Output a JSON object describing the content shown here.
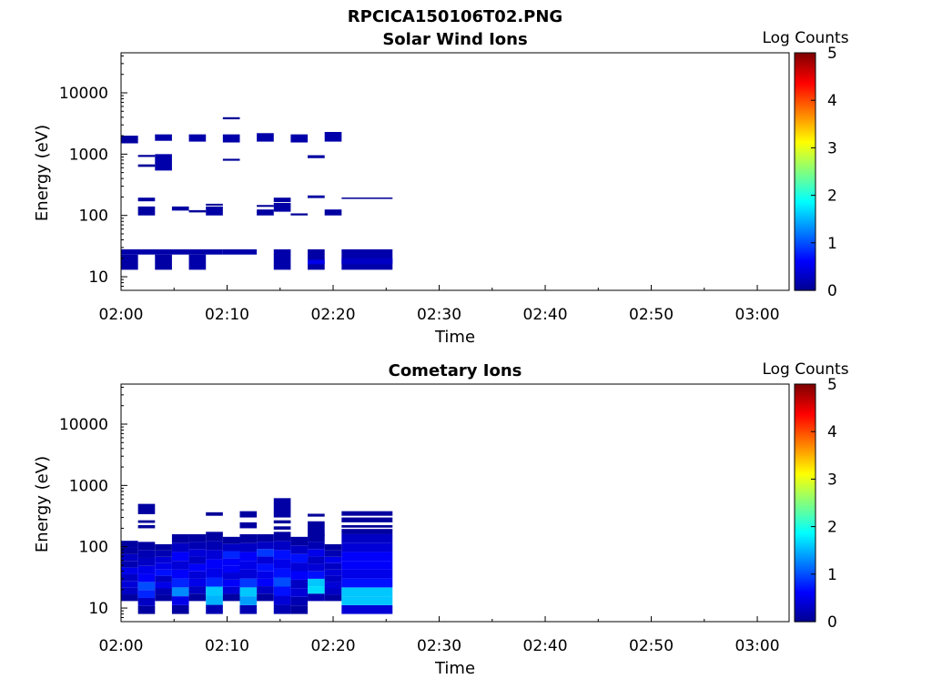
{
  "figure_title": "RPCICA150106T02.PNG",
  "colormap": [
    "#00008f",
    "#0000ff",
    "#0080ff",
    "#00ffff",
    "#80ff80",
    "#ffff00",
    "#ff8000",
    "#ff0000",
    "#800000"
  ],
  "chart_data": [
    {
      "type": "heatmap",
      "title": "Solar Wind Ions",
      "xlabel": "Time",
      "ylabel": "Energy (eV)",
      "colorbar_label": "Log Counts",
      "colorbar_ticks": [
        "0",
        "1",
        "2",
        "3",
        "4",
        "5"
      ],
      "colorbar_range": [
        0,
        5
      ],
      "x_ticks": [
        "02:00",
        "02:10",
        "02:20",
        "02:30",
        "02:40",
        "02:50",
        "03:00"
      ],
      "y_ticks": [
        "10",
        "100",
        "1000",
        "10000"
      ],
      "xlim_minutes": [
        0,
        63
      ],
      "ylim": [
        6,
        45000
      ],
      "y_scale": "log",
      "cells": [
        {
          "t0": 0.0,
          "t1": 1.6,
          "e0": 1500,
          "e1": 2000,
          "v": 0.1
        },
        {
          "t0": 3.2,
          "t1": 4.8,
          "e0": 1650,
          "e1": 2100,
          "v": 0.15
        },
        {
          "t0": 6.4,
          "t1": 8.0,
          "e0": 1600,
          "e1": 2100,
          "v": 0.15
        },
        {
          "t0": 9.6,
          "t1": 11.2,
          "e0": 1550,
          "e1": 2100,
          "v": 0.15
        },
        {
          "t0": 12.8,
          "t1": 14.4,
          "e0": 1600,
          "e1": 2200,
          "v": 0.15
        },
        {
          "t0": 16.0,
          "t1": 17.6,
          "e0": 1550,
          "e1": 2100,
          "v": 0.15
        },
        {
          "t0": 19.2,
          "t1": 20.8,
          "e0": 1600,
          "e1": 2300,
          "v": 0.15
        },
        {
          "t0": 9.6,
          "t1": 11.2,
          "e0": 3700,
          "e1": 4000,
          "v": 0.05
        },
        {
          "t0": 9.6,
          "t1": 11.2,
          "e0": 780,
          "e1": 840,
          "v": 0.05
        },
        {
          "t0": 1.6,
          "t1": 3.2,
          "e0": 900,
          "e1": 970,
          "v": 0.05
        },
        {
          "t0": 1.6,
          "t1": 3.2,
          "e0": 620,
          "e1": 680,
          "v": 0.05
        },
        {
          "t0": 3.2,
          "t1": 4.8,
          "e0": 540,
          "e1": 1000,
          "v": 0.15
        },
        {
          "t0": 17.6,
          "t1": 19.2,
          "e0": 860,
          "e1": 960,
          "v": 0.1
        },
        {
          "t0": 1.6,
          "t1": 3.2,
          "e0": 170,
          "e1": 195,
          "v": 0.1
        },
        {
          "t0": 1.6,
          "t1": 3.2,
          "e0": 100,
          "e1": 140,
          "v": 0.1
        },
        {
          "t0": 4.8,
          "t1": 6.4,
          "e0": 120,
          "e1": 140,
          "v": 0.1
        },
        {
          "t0": 6.4,
          "t1": 8.0,
          "e0": 112,
          "e1": 122,
          "v": 0.05
        },
        {
          "t0": 8.0,
          "t1": 9.6,
          "e0": 100,
          "e1": 140,
          "v": 0.12
        },
        {
          "t0": 8.0,
          "t1": 9.6,
          "e0": 145,
          "e1": 155,
          "v": 0.05
        },
        {
          "t0": 12.8,
          "t1": 14.4,
          "e0": 100,
          "e1": 125,
          "v": 0.1
        },
        {
          "t0": 12.8,
          "t1": 14.4,
          "e0": 138,
          "e1": 148,
          "v": 0.05
        },
        {
          "t0": 14.4,
          "t1": 16.0,
          "e0": 115,
          "e1": 160,
          "v": 0.12
        },
        {
          "t0": 14.4,
          "t1": 16.0,
          "e0": 165,
          "e1": 195,
          "v": 0.1
        },
        {
          "t0": 16.0,
          "t1": 17.6,
          "e0": 100,
          "e1": 108,
          "v": 0.05
        },
        {
          "t0": 17.6,
          "t1": 19.2,
          "e0": 192,
          "e1": 212,
          "v": 0.1
        },
        {
          "t0": 19.2,
          "t1": 20.8,
          "e0": 100,
          "e1": 125,
          "v": 0.1
        },
        {
          "t0": 20.8,
          "t1": 25.6,
          "e0": 186,
          "e1": 196,
          "v": 0.05
        },
        {
          "t0": 0.0,
          "t1": 9.6,
          "e0": 23,
          "e1": 28,
          "v": 0.15
        },
        {
          "t0": 9.6,
          "t1": 12.8,
          "e0": 23,
          "e1": 28,
          "v": 0.15
        },
        {
          "t0": 0.0,
          "t1": 1.6,
          "e0": 13,
          "e1": 23,
          "v": 0.12
        },
        {
          "t0": 3.2,
          "t1": 4.8,
          "e0": 13,
          "e1": 23,
          "v": 0.12
        },
        {
          "t0": 6.4,
          "t1": 8.0,
          "e0": 13,
          "e1": 23,
          "v": 0.15
        },
        {
          "t0": 14.4,
          "t1": 16.0,
          "e0": 13,
          "e1": 28,
          "v": 0.15
        },
        {
          "t0": 17.6,
          "t1": 19.2,
          "e0": 13,
          "e1": 28,
          "v": 0.12
        },
        {
          "t0": 17.6,
          "t1": 19.2,
          "e0": 16,
          "e1": 19,
          "v": 0.5
        },
        {
          "t0": 20.8,
          "t1": 25.6,
          "e0": 13,
          "e1": 28,
          "v": 0.15
        },
        {
          "t0": 20.8,
          "t1": 25.6,
          "e0": 16,
          "e1": 20,
          "v": 0.3
        }
      ]
    },
    {
      "type": "heatmap",
      "title": "Cometary Ions",
      "xlabel": "Time",
      "ylabel": "Energy (eV)",
      "colorbar_label": "Log Counts",
      "colorbar_ticks": [
        "0",
        "1",
        "2",
        "3",
        "4",
        "5"
      ],
      "colorbar_range": [
        0,
        5
      ],
      "x_ticks": [
        "02:00",
        "02:10",
        "02:20",
        "02:30",
        "02:40",
        "02:50",
        "03:00"
      ],
      "y_ticks": [
        "10",
        "100",
        "1000",
        "10000"
      ],
      "xlim_minutes": [
        0,
        63
      ],
      "ylim": [
        6,
        45000
      ],
      "y_scale": "log",
      "columns": [
        {
          "t0": 0.0,
          "t1": 1.6,
          "e_min": 13,
          "e_max": 125,
          "v": [
            0.1,
            0.3,
            0.4,
            0.3,
            0.5,
            0.2,
            0.3,
            0.1,
            0.1
          ]
        },
        {
          "t0": 1.6,
          "t1": 3.2,
          "e_min": 8,
          "e_max": 120,
          "v": [
            0.1,
            0.3,
            0.8,
            1.0,
            0.6,
            0.5,
            0.3,
            0.2,
            0.1
          ]
        },
        {
          "t0": 3.2,
          "t1": 4.8,
          "e_min": 13,
          "e_max": 110,
          "v": [
            0.1,
            0.2,
            0.5,
            0.3,
            0.7,
            0.5,
            0.4,
            0.2,
            0.1
          ]
        },
        {
          "t0": 4.8,
          "t1": 6.4,
          "e_min": 8,
          "e_max": 160,
          "v": [
            0.1,
            0.5,
            1.3,
            0.8,
            0.6,
            0.4,
            0.6,
            0.3,
            0.1
          ]
        },
        {
          "t0": 6.4,
          "t1": 8.0,
          "e_min": 13,
          "e_max": 160,
          "v": [
            0.1,
            0.3,
            0.5,
            0.4,
            0.6,
            0.3,
            0.4,
            0.2,
            0.1
          ]
        },
        {
          "t0": 8.0,
          "t1": 9.6,
          "e_min": 8,
          "e_max": 175,
          "v": [
            0.2,
            1.5,
            1.6,
            0.8,
            0.5,
            0.6,
            0.4,
            0.2,
            0.1
          ]
        },
        {
          "t0": 9.6,
          "t1": 11.2,
          "e_min": 13,
          "e_max": 145,
          "v": [
            0.1,
            0.4,
            0.6,
            0.4,
            0.6,
            0.6,
            0.8,
            0.3,
            0.1
          ]
        },
        {
          "t0": 11.2,
          "t1": 12.8,
          "e_min": 8,
          "e_max": 160,
          "v": [
            0.2,
            1.4,
            1.6,
            0.9,
            0.4,
            0.5,
            0.6,
            0.3,
            0.1
          ]
        },
        {
          "t0": 12.8,
          "t1": 14.4,
          "e_min": 13,
          "e_max": 160,
          "v": [
            0.1,
            0.3,
            0.6,
            0.5,
            0.7,
            0.4,
            0.9,
            0.3,
            0.1
          ]
        },
        {
          "t0": 14.4,
          "t1": 16.0,
          "e_min": 8,
          "e_max": 175,
          "v": [
            0.2,
            0.4,
            0.7,
            1.0,
            0.7,
            0.5,
            0.7,
            0.3,
            0.1
          ]
        },
        {
          "t0": 16.0,
          "t1": 17.6,
          "e_min": 8,
          "e_max": 145,
          "v": [
            0.1,
            0.2,
            0.4,
            0.3,
            0.6,
            0.4,
            0.7,
            0.3,
            0.1
          ]
        },
        {
          "t0": 17.6,
          "t1": 19.2,
          "e_min": 13,
          "e_max": 160,
          "v": [
            0.2,
            1.7,
            1.6,
            0.7,
            0.4,
            0.3,
            0.5,
            0.2,
            0.1
          ]
        },
        {
          "t0": 19.2,
          "t1": 20.8,
          "e_min": 13,
          "e_max": 110,
          "v": [
            0.1,
            0.3,
            0.4,
            0.3,
            0.4,
            0.3,
            0.5,
            0.2,
            0.1
          ]
        },
        {
          "t0": 20.8,
          "t1": 25.6,
          "e_min": 8,
          "e_max": 160,
          "v": [
            0.4,
            1.6,
            1.6,
            0.7,
            0.5,
            0.6,
            0.6,
            0.4,
            0.3
          ]
        }
      ],
      "cells": [
        {
          "t0": 1.6,
          "t1": 3.2,
          "e0": 340,
          "e1": 500,
          "v": 0.1
        },
        {
          "t0": 1.6,
          "t1": 3.2,
          "e0": 245,
          "e1": 270,
          "v": 0.05
        },
        {
          "t0": 1.6,
          "t1": 3.2,
          "e0": 200,
          "e1": 225,
          "v": 0.05
        },
        {
          "t0": 8.0,
          "t1": 9.6,
          "e0": 320,
          "e1": 365,
          "v": 0.05
        },
        {
          "t0": 11.2,
          "t1": 12.8,
          "e0": 300,
          "e1": 380,
          "v": 0.1
        },
        {
          "t0": 11.2,
          "t1": 12.8,
          "e0": 200,
          "e1": 250,
          "v": 0.1
        },
        {
          "t0": 14.4,
          "t1": 16.0,
          "e0": 300,
          "e1": 620,
          "v": 0.12
        },
        {
          "t0": 14.4,
          "t1": 16.0,
          "e0": 240,
          "e1": 270,
          "v": 0.05
        },
        {
          "t0": 14.4,
          "t1": 16.0,
          "e0": 190,
          "e1": 215,
          "v": 0.05
        },
        {
          "t0": 17.6,
          "t1": 19.2,
          "e0": 310,
          "e1": 345,
          "v": 0.05
        },
        {
          "t0": 17.6,
          "t1": 19.2,
          "e0": 150,
          "e1": 260,
          "v": 0.1
        },
        {
          "t0": 20.8,
          "t1": 25.6,
          "e0": 320,
          "e1": 380,
          "v": 0.1
        },
        {
          "t0": 20.8,
          "t1": 25.6,
          "e0": 250,
          "e1": 300,
          "v": 0.08
        },
        {
          "t0": 20.8,
          "t1": 25.6,
          "e0": 205,
          "e1": 225,
          "v": 0.05
        },
        {
          "t0": 20.8,
          "t1": 25.6,
          "e0": 160,
          "e1": 195,
          "v": 0.1
        }
      ]
    }
  ]
}
